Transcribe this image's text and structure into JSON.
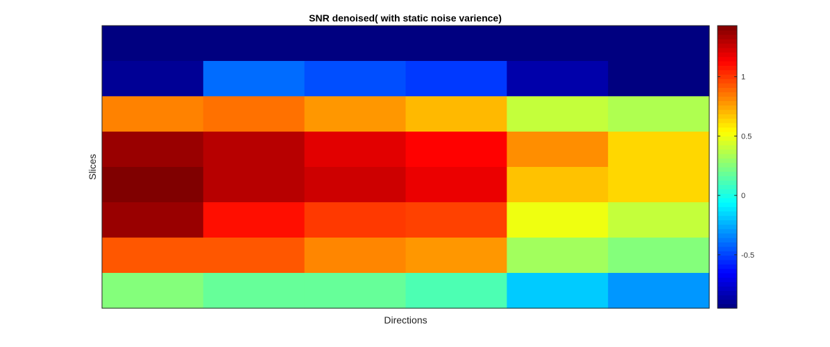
{
  "chart_data": {
    "type": "heatmap",
    "title": "SNR denoised( with static noise varience)",
    "xlabel": "Directions",
    "ylabel": "Slices",
    "rows": 8,
    "cols": 6,
    "values": [
      [
        -0.95,
        -0.95,
        -0.95,
        -0.95,
        -0.95,
        -0.95
      ],
      [
        -0.9,
        -0.4,
        -0.47,
        -0.52,
        -0.85,
        -0.95
      ],
      [
        0.83,
        0.87,
        0.78,
        0.7,
        0.4,
        0.35
      ],
      [
        1.37,
        1.3,
        1.2,
        1.13,
        0.8,
        0.63
      ],
      [
        1.43,
        1.3,
        1.25,
        1.18,
        0.68,
        0.63
      ],
      [
        1.37,
        1.1,
        1.0,
        0.98,
        0.5,
        0.4
      ],
      [
        0.93,
        0.93,
        0.82,
        0.78,
        0.32,
        0.25
      ],
      [
        0.25,
        0.18,
        0.18,
        0.12,
        -0.18,
        -0.3
      ]
    ],
    "clim": [
      -0.95,
      1.43
    ],
    "colormap": "jet",
    "colorbar": {
      "location": "right",
      "ticks": [
        -0.5,
        0,
        0.5,
        1
      ],
      "tick_labels": [
        "-0.5",
        "0",
        "0.5",
        "1"
      ]
    },
    "grid": false
  }
}
